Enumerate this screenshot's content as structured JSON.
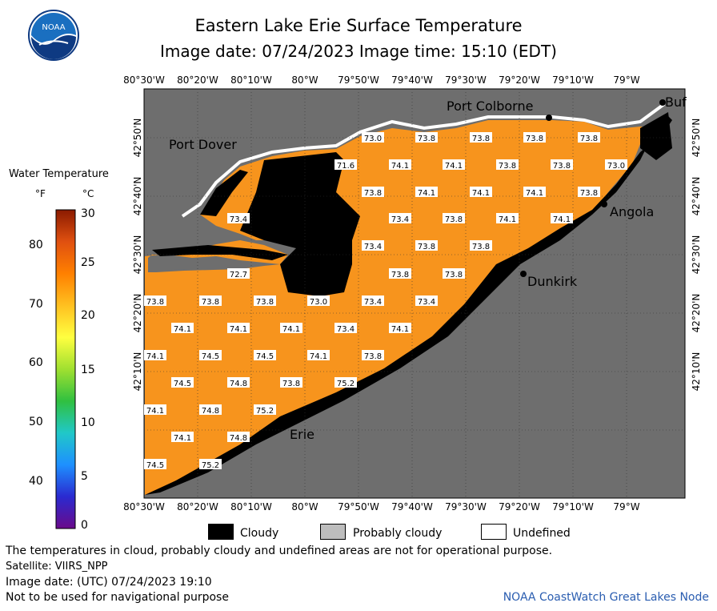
{
  "header": {
    "title": "Eastern Lake Erie Surface Temperature",
    "image_date_line": "Image date: 07/24/2023     Image time: 15:10 (EDT)"
  },
  "logo": {
    "text": "NOAA",
    "icon": "noaa-logo-icon",
    "colors": {
      "sky": "#1a6fc0",
      "wave": "#0e3a82"
    }
  },
  "longitude_ticks": [
    "80°30'W",
    "80°20'W",
    "80°10'W",
    "80°W",
    "79°50'W",
    "79°40'W",
    "79°30'W",
    "79°20'W",
    "79°10'W",
    "79°W"
  ],
  "latitude_ticks": [
    "42°50'N",
    "42°40'N",
    "42°30'N",
    "42°20'N",
    "42°10'N"
  ],
  "places": {
    "port_colborne": "Port Colborne",
    "port_dover": "Port Dover",
    "angola": "Angola",
    "dunkirk": "Dunkirk",
    "erie": "Erie",
    "buffalo_partial": "Buf"
  },
  "temperature_labels": [
    "73.0",
    "73.8",
    "73.8",
    "73.8",
    "73.8",
    "71.6",
    "74.1",
    "74.1",
    "73.8",
    "73.8",
    "73.0",
    "73.8",
    "74.1",
    "74.1",
    "74.1",
    "73.8",
    "73.4",
    "73.4",
    "73.8",
    "74.1",
    "74.1",
    "73.4",
    "73.8",
    "73.8",
    "72.7",
    "73.8",
    "73.8",
    "73.8",
    "73.8",
    "73.8",
    "73.0",
    "73.4",
    "73.4",
    "74.1",
    "74.1",
    "74.1",
    "73.4",
    "74.1",
    "74.1",
    "74.5",
    "74.5",
    "74.1",
    "73.8",
    "74.5",
    "74.8",
    "73.8",
    "75.2",
    "74.1",
    "74.8",
    "75.2",
    "74.1",
    "74.8",
    "74.5",
    "75.2"
  ],
  "legend": {
    "title": "Water Temperature",
    "unit_f": "°F",
    "unit_c": "°C",
    "f_ticks": [
      "80",
      "70",
      "60",
      "50",
      "40"
    ],
    "c_ticks": [
      "30",
      "25",
      "20",
      "15",
      "10",
      "5",
      "0"
    ],
    "scale_colors": [
      "#6a0a8a",
      "#2a2ad0",
      "#1e90ff",
      "#20c8c8",
      "#30c040",
      "#a0e030",
      "#ffff40",
      "#ffc020",
      "#ff8000",
      "#e05010",
      "#8a1a00"
    ]
  },
  "key": {
    "cloudy": "Cloudy",
    "probably_cloudy": "Probably cloudy",
    "undefined": "Undefined",
    "colors": {
      "cloudy": "#000000",
      "probably_cloudy": "#bdbdbd",
      "undefined": "#ffffff",
      "land": "#6e6e6e",
      "water": "#f7941d"
    }
  },
  "footer": {
    "disclaimer": "The temperatures in cloud, probably cloudy and undefined areas are not for operational purpose.",
    "satellite": "Satellite: VIIRS_NPP",
    "utc_date": "Image date: (UTC) 07/24/2023  19:10",
    "nav": "Not to be used for navigational purpose",
    "credit": "NOAA CoastWatch Great Lakes Node"
  }
}
